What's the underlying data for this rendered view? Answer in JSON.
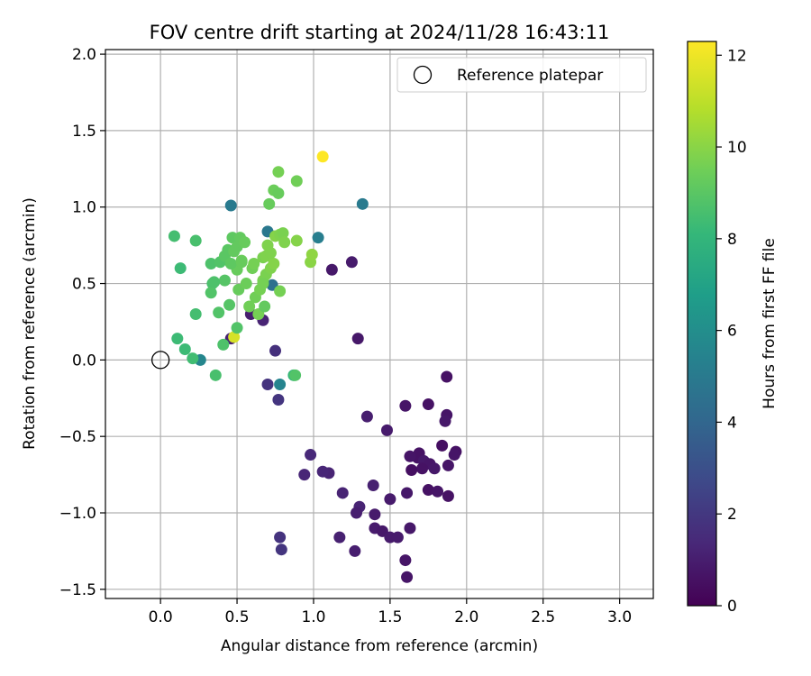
{
  "chart_data": {
    "type": "scatter",
    "title": "FOV centre drift starting at 2024/11/28 16:43:11",
    "xlabel": "Angular distance from reference (arcmin)",
    "ylabel": "Rotation from reference (arcmin)",
    "xlim": [
      -0.36,
      3.22
    ],
    "ylim": [
      -1.56,
      2.03
    ],
    "xticks": [
      0.0,
      0.5,
      1.0,
      1.5,
      2.0,
      2.5,
      3.0
    ],
    "yticks": [
      -1.5,
      -1.0,
      -0.5,
      0.0,
      0.5,
      1.0,
      1.5,
      2.0
    ],
    "xtick_labels": [
      "0.0",
      "0.5",
      "1.0",
      "1.5",
      "2.0",
      "2.5",
      "3.0"
    ],
    "ytick_labels": [
      "−1.5",
      "−1.0",
      "−0.5",
      "0.0",
      "0.5",
      "1.0",
      "1.5",
      "2.0"
    ],
    "grid": true,
    "legend": {
      "placement": "top-right",
      "entries": [
        "Reference platepar"
      ]
    },
    "reference_point": {
      "x": 0.0,
      "y": 0.0,
      "label": "Reference platepar"
    },
    "colorbar": {
      "label": "Hours from first FF file",
      "range": [
        0,
        12.3
      ],
      "ticks": [
        0,
        2,
        4,
        6,
        8,
        10,
        12
      ],
      "tick_labels": [
        "0",
        "2",
        "4",
        "6",
        "8",
        "10",
        "12"
      ],
      "colormap": "viridis"
    },
    "points": [
      {
        "x": 1.87,
        "y": -0.11,
        "h": 0.6
      },
      {
        "x": 1.87,
        "y": -0.36,
        "h": 0.7
      },
      {
        "x": 1.86,
        "y": -0.4,
        "h": 0.8
      },
      {
        "x": 1.75,
        "y": -0.29,
        "h": 0.6
      },
      {
        "x": 1.6,
        "y": -0.3,
        "h": 0.7
      },
      {
        "x": 1.48,
        "y": -0.46,
        "h": 0.9
      },
      {
        "x": 1.35,
        "y": -0.37,
        "h": 1.0
      },
      {
        "x": 1.84,
        "y": -0.56,
        "h": 0.5
      },
      {
        "x": 1.93,
        "y": -0.6,
        "h": 0.6
      },
      {
        "x": 1.92,
        "y": -0.62,
        "h": 0.7
      },
      {
        "x": 1.69,
        "y": -0.61,
        "h": 0.6
      },
      {
        "x": 1.68,
        "y": -0.64,
        "h": 0.6
      },
      {
        "x": 1.63,
        "y": -0.63,
        "h": 0.7
      },
      {
        "x": 1.72,
        "y": -0.66,
        "h": 0.8
      },
      {
        "x": 1.76,
        "y": -0.68,
        "h": 0.7
      },
      {
        "x": 1.71,
        "y": -0.71,
        "h": 0.6
      },
      {
        "x": 1.64,
        "y": -0.72,
        "h": 0.5
      },
      {
        "x": 1.79,
        "y": -0.71,
        "h": 0.8
      },
      {
        "x": 1.88,
        "y": -0.69,
        "h": 0.7
      },
      {
        "x": 1.75,
        "y": -0.85,
        "h": 0.6
      },
      {
        "x": 1.81,
        "y": -0.86,
        "h": 0.7
      },
      {
        "x": 1.88,
        "y": -0.89,
        "h": 0.6
      },
      {
        "x": 1.61,
        "y": -0.87,
        "h": 0.8
      },
      {
        "x": 1.5,
        "y": -0.91,
        "h": 0.9
      },
      {
        "x": 1.39,
        "y": -0.82,
        "h": 1.1
      },
      {
        "x": 1.3,
        "y": -0.96,
        "h": 1.2
      },
      {
        "x": 1.28,
        "y": -1.0,
        "h": 1.0
      },
      {
        "x": 1.4,
        "y": -1.01,
        "h": 0.9
      },
      {
        "x": 1.4,
        "y": -1.1,
        "h": 0.9
      },
      {
        "x": 1.45,
        "y": -1.12,
        "h": 0.8
      },
      {
        "x": 1.5,
        "y": -1.16,
        "h": 0.9
      },
      {
        "x": 1.55,
        "y": -1.16,
        "h": 0.9
      },
      {
        "x": 1.63,
        "y": -1.1,
        "h": 0.8
      },
      {
        "x": 1.6,
        "y": -1.31,
        "h": 0.7
      },
      {
        "x": 1.61,
        "y": -1.42,
        "h": 0.7
      },
      {
        "x": 1.27,
        "y": -1.25,
        "h": 1.0
      },
      {
        "x": 1.17,
        "y": -1.16,
        "h": 1.1
      },
      {
        "x": 1.19,
        "y": -0.87,
        "h": 1.2
      },
      {
        "x": 1.1,
        "y": -0.74,
        "h": 1.2
      },
      {
        "x": 1.06,
        "y": -0.73,
        "h": 1.3
      },
      {
        "x": 0.94,
        "y": -0.75,
        "h": 1.3
      },
      {
        "x": 0.98,
        "y": -0.62,
        "h": 1.4
      },
      {
        "x": 0.78,
        "y": -1.16,
        "h": 1.8
      },
      {
        "x": 0.79,
        "y": -1.24,
        "h": 1.9
      },
      {
        "x": 0.77,
        "y": -0.26,
        "h": 1.9
      },
      {
        "x": 0.7,
        "y": -0.16,
        "h": 1.8
      },
      {
        "x": 0.75,
        "y": 0.06,
        "h": 1.7
      },
      {
        "x": 0.67,
        "y": 0.26,
        "h": 1.2
      },
      {
        "x": 0.59,
        "y": 0.3,
        "h": 1.0
      },
      {
        "x": 1.29,
        "y": 0.14,
        "h": 0.8
      },
      {
        "x": 1.12,
        "y": 0.59,
        "h": 0.8
      },
      {
        "x": 1.25,
        "y": 0.64,
        "h": 0.9
      },
      {
        "x": 0.46,
        "y": 0.14,
        "h": 1.1
      },
      {
        "x": 0.46,
        "y": 1.01,
        "h": 5.0
      },
      {
        "x": 1.32,
        "y": 1.02,
        "h": 5.0
      },
      {
        "x": 1.03,
        "y": 0.8,
        "h": 5.2
      },
      {
        "x": 0.7,
        "y": 0.84,
        "h": 4.9
      },
      {
        "x": 0.78,
        "y": -0.16,
        "h": 5.5
      },
      {
        "x": 0.26,
        "y": 0.0,
        "h": 5.6
      },
      {
        "x": 0.73,
        "y": 0.49,
        "h": 4.5
      },
      {
        "x": 0.87,
        "y": -0.1,
        "h": 8.0
      },
      {
        "x": 1.06,
        "y": 1.33,
        "h": 12.3
      },
      {
        "x": 0.48,
        "y": 0.15,
        "h": 11.5
      },
      {
        "x": 0.77,
        "y": 1.23,
        "h": 9.6
      },
      {
        "x": 0.74,
        "y": 1.11,
        "h": 9.4
      },
      {
        "x": 0.77,
        "y": 1.09,
        "h": 9.3
      },
      {
        "x": 0.89,
        "y": 1.17,
        "h": 9.5
      },
      {
        "x": 0.71,
        "y": 1.02,
        "h": 9.3
      },
      {
        "x": 0.09,
        "y": 0.81,
        "h": 8.5
      },
      {
        "x": 0.23,
        "y": 0.78,
        "h": 8.6
      },
      {
        "x": 0.13,
        "y": 0.6,
        "h": 8.3
      },
      {
        "x": 0.33,
        "y": 0.63,
        "h": 8.7
      },
      {
        "x": 0.34,
        "y": 0.5,
        "h": 8.6
      },
      {
        "x": 0.39,
        "y": 0.64,
        "h": 8.8
      },
      {
        "x": 0.42,
        "y": 0.68,
        "h": 9.0
      },
      {
        "x": 0.44,
        "y": 0.72,
        "h": 9.0
      },
      {
        "x": 0.47,
        "y": 0.8,
        "h": 9.1
      },
      {
        "x": 0.52,
        "y": 0.8,
        "h": 9.2
      },
      {
        "x": 0.5,
        "y": 0.74,
        "h": 9.2
      },
      {
        "x": 0.55,
        "y": 0.77,
        "h": 9.3
      },
      {
        "x": 0.5,
        "y": 0.59,
        "h": 9.3
      },
      {
        "x": 0.42,
        "y": 0.52,
        "h": 8.9
      },
      {
        "x": 0.33,
        "y": 0.44,
        "h": 8.8
      },
      {
        "x": 0.35,
        "y": 0.51,
        "h": 8.7
      },
      {
        "x": 0.23,
        "y": 0.3,
        "h": 8.5
      },
      {
        "x": 0.11,
        "y": 0.14,
        "h": 8.3
      },
      {
        "x": 0.16,
        "y": 0.07,
        "h": 8.3
      },
      {
        "x": 0.21,
        "y": 0.01,
        "h": 8.4
      },
      {
        "x": 0.36,
        "y": -0.1,
        "h": 8.6
      },
      {
        "x": 0.41,
        "y": 0.1,
        "h": 8.7
      },
      {
        "x": 0.38,
        "y": 0.31,
        "h": 8.8
      },
      {
        "x": 0.45,
        "y": 0.36,
        "h": 8.9
      },
      {
        "x": 0.5,
        "y": 0.21,
        "h": 8.8
      },
      {
        "x": 0.51,
        "y": 0.46,
        "h": 9.3
      },
      {
        "x": 0.56,
        "y": 0.5,
        "h": 9.4
      },
      {
        "x": 0.53,
        "y": 0.65,
        "h": 9.4
      },
      {
        "x": 0.6,
        "y": 0.6,
        "h": 9.5
      },
      {
        "x": 0.61,
        "y": 0.63,
        "h": 9.6
      },
      {
        "x": 0.62,
        "y": 0.41,
        "h": 9.5
      },
      {
        "x": 0.58,
        "y": 0.35,
        "h": 9.5
      },
      {
        "x": 0.64,
        "y": 0.3,
        "h": 9.6
      },
      {
        "x": 0.68,
        "y": 0.35,
        "h": 9.2
      },
      {
        "x": 0.65,
        "y": 0.46,
        "h": 9.6
      },
      {
        "x": 0.67,
        "y": 0.52,
        "h": 9.7
      },
      {
        "x": 0.69,
        "y": 0.56,
        "h": 9.7
      },
      {
        "x": 0.67,
        "y": 0.67,
        "h": 9.7
      },
      {
        "x": 0.69,
        "y": 0.68,
        "h": 9.8
      },
      {
        "x": 0.7,
        "y": 0.75,
        "h": 9.8
      },
      {
        "x": 0.72,
        "y": 0.6,
        "h": 9.8
      },
      {
        "x": 0.74,
        "y": 0.63,
        "h": 9.9
      },
      {
        "x": 0.72,
        "y": 0.7,
        "h": 9.8
      },
      {
        "x": 0.75,
        "y": 0.81,
        "h": 9.9
      },
      {
        "x": 0.78,
        "y": 0.82,
        "h": 9.8
      },
      {
        "x": 0.8,
        "y": 0.83,
        "h": 9.7
      },
      {
        "x": 0.81,
        "y": 0.77,
        "h": 9.8
      },
      {
        "x": 0.89,
        "y": 0.78,
        "h": 9.9
      },
      {
        "x": 0.98,
        "y": 0.64,
        "h": 10.0
      },
      {
        "x": 0.99,
        "y": 0.69,
        "h": 10.1
      },
      {
        "x": 0.78,
        "y": 0.45,
        "h": 9.6
      },
      {
        "x": 0.88,
        "y": -0.1,
        "h": 8.8
      },
      {
        "x": 0.67,
        "y": 0.5,
        "h": 9.6
      },
      {
        "x": 0.46,
        "y": 0.63,
        "h": 9.1
      },
      {
        "x": 0.48,
        "y": 0.71,
        "h": 9.2
      },
      {
        "x": 0.53,
        "y": 0.64,
        "h": 9.3
      }
    ]
  }
}
